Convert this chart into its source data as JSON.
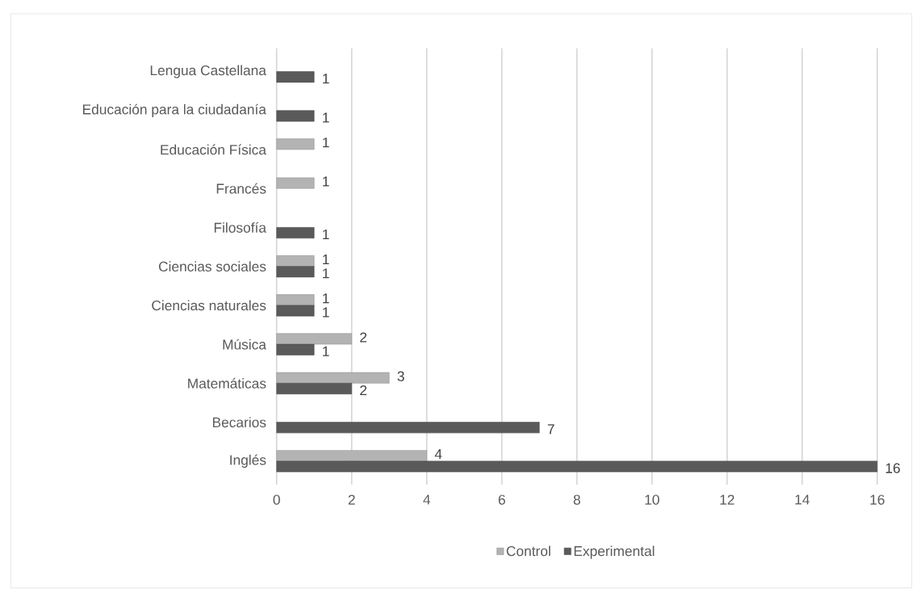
{
  "chart_data": {
    "type": "bar",
    "orientation": "horizontal",
    "categories": [
      "Lengua Castellana",
      "Educación para la ciudadanía",
      "Educación Física",
      "Francés",
      "Filosofía",
      "Ciencias sociales",
      "Ciencias naturales",
      "Música",
      "Matemáticas",
      "Becarios",
      "Inglés"
    ],
    "series": [
      {
        "name": "Control",
        "color": "#b3b3b3",
        "values": [
          null,
          null,
          1,
          1,
          null,
          1,
          1,
          2,
          3,
          null,
          4
        ]
      },
      {
        "name": "Experimental",
        "color": "#5a5a5a",
        "values": [
          1,
          1,
          null,
          null,
          1,
          1,
          1,
          1,
          2,
          7,
          16
        ]
      }
    ],
    "xlim": [
      0,
      16
    ],
    "xticks": [
      0,
      2,
      4,
      6,
      8,
      10,
      12,
      14,
      16
    ],
    "grid": "x",
    "legend": "bottom",
    "data_labels": true
  }
}
